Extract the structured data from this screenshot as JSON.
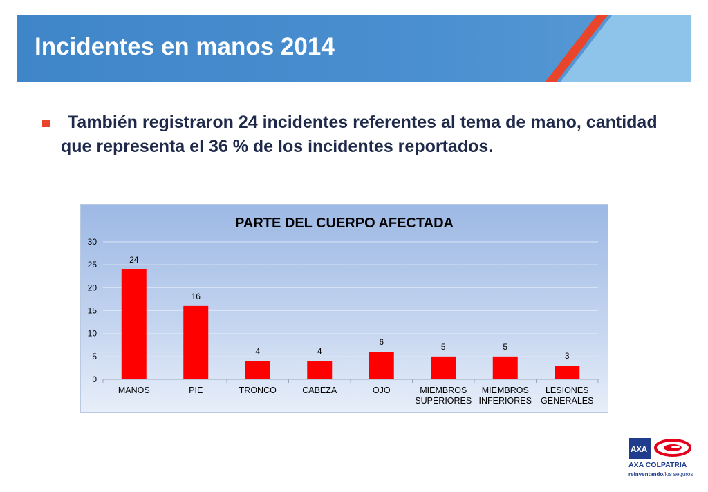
{
  "slide": {
    "title": "Incidentes en manos 2014",
    "bullet": "También registraron 24 incidentes referentes al tema de mano, cantidad que representa el 36 % de los incidentes reportados."
  },
  "colors": {
    "header_blue": "#4a8fd0",
    "header_light": "#8ec3ea",
    "accent_red": "#e8452a",
    "bar_red": "#ff0000",
    "text_dark": "#1f2a4a"
  },
  "chart_data": {
    "type": "bar",
    "title": "PARTE DEL CUERPO AFECTADA",
    "categories": [
      [
        "MANOS"
      ],
      [
        "PIE"
      ],
      [
        "TRONCO"
      ],
      [
        "CABEZA"
      ],
      [
        "OJO"
      ],
      [
        "MIEMBROS",
        "SUPERIORES"
      ],
      [
        "MIEMBROS",
        "INFERIORES"
      ],
      [
        "LESIONES",
        "GENERALES"
      ]
    ],
    "values": [
      24,
      16,
      4,
      4,
      6,
      5,
      5,
      3
    ],
    "ylim": [
      0,
      30
    ],
    "yticks": [
      0,
      5,
      10,
      15,
      20,
      25,
      30
    ],
    "xlabel": "",
    "ylabel": "",
    "legend": "none",
    "data_labels": true
  },
  "logo": {
    "mark": "AXA",
    "brand": "AXA COLPATRIA",
    "slogan_bold": "reinventando",
    "slogan_sep": "/",
    "slogan_rest": "los seguros"
  }
}
